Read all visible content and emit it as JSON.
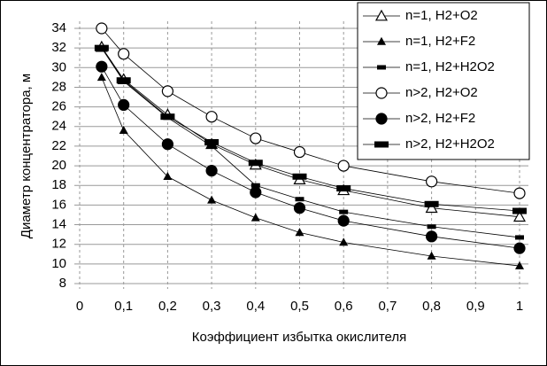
{
  "chart_data": {
    "type": "line",
    "x_label": "Коэффициент избытка окислителя",
    "y_label": "Диаметр концентратора, м",
    "x": [
      0.05,
      0.1,
      0.2,
      0.3,
      0.4,
      0.5,
      0.6,
      0.8,
      1
    ],
    "series": [
      {
        "name": "n=1, H2+O2",
        "color": "#000000",
        "marker": "triangle-open",
        "values": [
          32.1,
          28.8,
          25.2,
          22.2,
          20.1,
          18.6,
          17.5,
          15.7,
          14.8
        ]
      },
      {
        "name": "n=1, H2+F2",
        "color": "#000000",
        "marker": "triangle-filled",
        "values": [
          29.0,
          23.6,
          18.9,
          16.5,
          14.7,
          13.2,
          12.2,
          10.8,
          9.8
        ]
      },
      {
        "name": "n=1, H2+H2O2",
        "color": "#000000",
        "marker": "dash-small",
        "values": [
          32.0,
          28.6,
          24.9,
          22.0,
          18.0,
          16.6,
          15.3,
          13.8,
          12.7
        ]
      },
      {
        "name": "n>2, H2+O2",
        "color": "#000000",
        "marker": "circle-open",
        "values": [
          34.0,
          31.4,
          27.6,
          25.0,
          22.8,
          21.4,
          20.0,
          18.4,
          17.2
        ]
      },
      {
        "name": "n>2, H2+F2",
        "color": "#000000",
        "marker": "circle-filled",
        "values": [
          30.1,
          26.2,
          22.2,
          19.5,
          17.3,
          15.7,
          14.4,
          12.8,
          11.6
        ]
      },
      {
        "name": "n>2, H2+H2O2",
        "color": "#000000",
        "marker": "dash-big",
        "values": [
          32.0,
          28.7,
          25.0,
          22.4,
          20.3,
          18.9,
          17.7,
          16.1,
          15.4
        ]
      }
    ],
    "xlim": [
      0,
      1
    ],
    "xticks": [
      0,
      {
        "value": 0.1,
        "label": "0,1"
      },
      {
        "value": 0.2,
        "label": "0,2"
      },
      {
        "value": 0.3,
        "label": "0,3"
      },
      {
        "value": 0.4,
        "label": "0,4"
      },
      {
        "value": 0.5,
        "label": "0,5"
      },
      {
        "value": 0.6,
        "label": "0,6"
      },
      {
        "value": 0.7,
        "label": "0,7"
      },
      {
        "value": 0.8,
        "label": "0,8"
      },
      {
        "value": 0.9,
        "label": "0,9"
      },
      1
    ],
    "ylim": [
      8,
      34
    ],
    "yticks": [
      8,
      10,
      12,
      14,
      16,
      18,
      20,
      22,
      24,
      26,
      28,
      30,
      32,
      34
    ],
    "grid": true,
    "legend": "top-right"
  }
}
